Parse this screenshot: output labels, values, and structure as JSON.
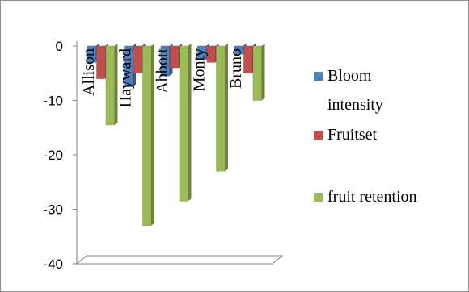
{
  "chart_data": {
    "type": "bar",
    "orientation": "vertical",
    "style": "3d-clustered-column",
    "title": "",
    "xlabel": "",
    "ylabel": "",
    "categories": [
      "Allison",
      "Hayward",
      "Abbott",
      "Monty",
      "Bruno"
    ],
    "series": [
      {
        "name": "Bloom intensity",
        "color": "#4f81bd",
        "values": [
          -3,
          -7.5,
          -5.5,
          -2.5,
          -1.5
        ]
      },
      {
        "name": "Fruitset",
        "color": "#c0504d",
        "values": [
          -6,
          -5,
          -4,
          -3,
          -5
        ]
      },
      {
        "name": "fruit retention",
        "color": "#9bbb59",
        "values": [
          -14.5,
          -33,
          -28.5,
          -23,
          -10
        ]
      }
    ],
    "legend_labels": [
      [
        "Bloom",
        "intensity"
      ],
      [
        "Fruitset"
      ],
      [
        "fruit retention"
      ]
    ],
    "ylim": [
      -40,
      0
    ],
    "yticks": [
      0,
      -10,
      -20,
      -30,
      -40
    ],
    "grid": false,
    "legend_position": "right"
  }
}
